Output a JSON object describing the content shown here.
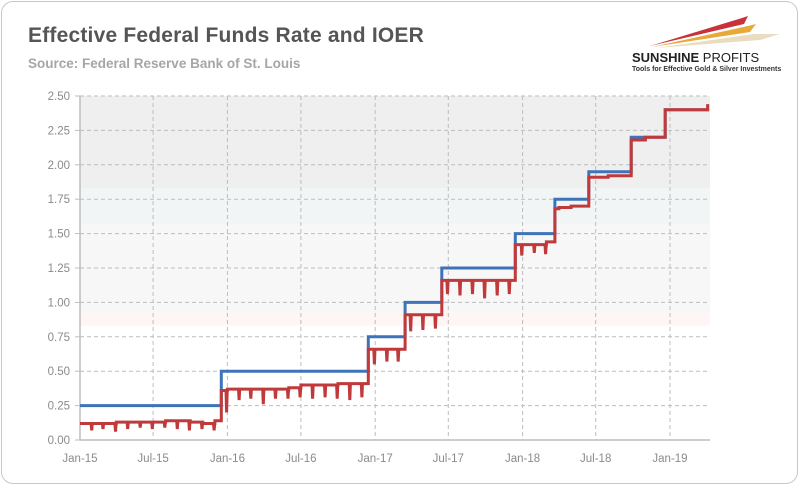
{
  "chart_data": {
    "type": "line",
    "title": "Effective Federal Funds Rate and IOER",
    "subtitle": "Source: Federal Reserve Bank of St. Louis",
    "xlabel": "",
    "ylabel": "",
    "ylim": [
      0,
      2.5
    ],
    "xlim": [
      "2015-01-01",
      "2019-04-08"
    ],
    "grid": true,
    "legend": "none",
    "y_ticks": [
      "0.00",
      "0.25",
      "0.50",
      "0.75",
      "1.00",
      "1.25",
      "1.50",
      "1.75",
      "2.00",
      "2.25",
      "2.50"
    ],
    "x_ticks": [
      {
        "label": "Jan-15",
        "date": "2015-01-01"
      },
      {
        "label": "Jul-15",
        "date": "2015-07-01"
      },
      {
        "label": "Jan-16",
        "date": "2016-01-01"
      },
      {
        "label": "Jul-16",
        "date": "2016-07-01"
      },
      {
        "label": "Jan-17",
        "date": "2017-01-01"
      },
      {
        "label": "Jul-17",
        "date": "2017-07-01"
      },
      {
        "label": "Jan-18",
        "date": "2018-01-01"
      },
      {
        "label": "Jul-18",
        "date": "2018-07-01"
      },
      {
        "label": "Jan-19",
        "date": "2019-01-01"
      }
    ],
    "background_bands": [
      {
        "from": 1.83,
        "to": 2.5,
        "color": "#efefef"
      },
      {
        "from": 1.57,
        "to": 1.83,
        "color": "#f1f5f5"
      },
      {
        "from": 0.93,
        "to": 1.57,
        "color": "#f7f7f7"
      },
      {
        "from": 0.83,
        "to": 0.93,
        "color": "#fdf6f5"
      }
    ],
    "series": [
      {
        "key": "ioer",
        "color": "#3d73b9",
        "steps": [
          {
            "from": "2015-01-01",
            "value": 0.25
          },
          {
            "from": "2015-12-17",
            "value": 0.5
          },
          {
            "from": "2016-12-15",
            "value": 0.75
          },
          {
            "from": "2017-03-16",
            "value": 1.0
          },
          {
            "from": "2017-06-15",
            "value": 1.25
          },
          {
            "from": "2017-12-14",
            "value": 1.5
          },
          {
            "from": "2018-03-22",
            "value": 1.75
          },
          {
            "from": "2018-06-14",
            "value": 1.95
          },
          {
            "from": "2018-09-27",
            "value": 2.2
          },
          {
            "from": "2018-12-20",
            "value": 2.4
          }
        ],
        "end": "2019-04-08"
      },
      {
        "key": "effr",
        "color": "#c0393b",
        "periods": [
          {
            "from": "2015-01-01",
            "level": 0.12,
            "month_end_low": 0.07
          },
          {
            "from": "2015-02-01",
            "level": 0.12,
            "month_end_low": 0.08
          },
          {
            "from": "2015-03-01",
            "level": 0.12,
            "month_end_low": 0.06
          },
          {
            "from": "2015-04-01",
            "level": 0.13,
            "month_end_low": 0.08
          },
          {
            "from": "2015-05-01",
            "level": 0.13,
            "month_end_low": 0.09
          },
          {
            "from": "2015-06-01",
            "level": 0.13,
            "month_end_low": 0.08
          },
          {
            "from": "2015-07-01",
            "level": 0.13,
            "month_end_low": 0.09
          },
          {
            "from": "2015-08-01",
            "level": 0.14,
            "month_end_low": 0.08
          },
          {
            "from": "2015-09-01",
            "level": 0.14,
            "month_end_low": 0.07
          },
          {
            "from": "2015-10-01",
            "level": 0.13,
            "month_end_low": 0.08
          },
          {
            "from": "2015-11-01",
            "level": 0.12,
            "month_end_low": 0.07
          },
          {
            "from": "2015-12-01",
            "level": 0.14,
            "month_end_low": null
          },
          {
            "from": "2015-12-17",
            "level": 0.36,
            "month_end_low": 0.2
          },
          {
            "from": "2016-01-01",
            "level": 0.37,
            "month_end_low": 0.29
          },
          {
            "from": "2016-02-01",
            "level": 0.37,
            "month_end_low": 0.3
          },
          {
            "from": "2016-03-01",
            "level": 0.37,
            "month_end_low": 0.26
          },
          {
            "from": "2016-04-01",
            "level": 0.37,
            "month_end_low": 0.3
          },
          {
            "from": "2016-05-01",
            "level": 0.37,
            "month_end_low": 0.3
          },
          {
            "from": "2016-06-01",
            "level": 0.38,
            "month_end_low": 0.31
          },
          {
            "from": "2016-07-01",
            "level": 0.4,
            "month_end_low": 0.3
          },
          {
            "from": "2016-08-01",
            "level": 0.4,
            "month_end_low": 0.31
          },
          {
            "from": "2016-09-01",
            "level": 0.4,
            "month_end_low": 0.3
          },
          {
            "from": "2016-10-01",
            "level": 0.41,
            "month_end_low": 0.29
          },
          {
            "from": "2016-11-01",
            "level": 0.41,
            "month_end_low": 0.31
          },
          {
            "from": "2016-12-01",
            "level": 0.41,
            "month_end_low": null
          },
          {
            "from": "2016-12-15",
            "level": 0.66,
            "month_end_low": 0.55
          },
          {
            "from": "2017-01-01",
            "level": 0.66,
            "month_end_low": 0.57
          },
          {
            "from": "2017-02-01",
            "level": 0.66,
            "month_end_low": 0.57
          },
          {
            "from": "2017-03-01",
            "level": 0.66,
            "month_end_low": null
          },
          {
            "from": "2017-03-16",
            "level": 0.91,
            "month_end_low": 0.79
          },
          {
            "from": "2017-04-01",
            "level": 0.91,
            "month_end_low": 0.8
          },
          {
            "from": "2017-05-01",
            "level": 0.91,
            "month_end_low": 0.81
          },
          {
            "from": "2017-06-01",
            "level": 0.91,
            "month_end_low": null
          },
          {
            "from": "2017-06-15",
            "level": 1.16,
            "month_end_low": 1.06
          },
          {
            "from": "2017-07-01",
            "level": 1.16,
            "month_end_low": 1.05
          },
          {
            "from": "2017-08-01",
            "level": 1.16,
            "month_end_low": 1.06
          },
          {
            "from": "2017-09-01",
            "level": 1.16,
            "month_end_low": 1.03
          },
          {
            "from": "2017-10-01",
            "level": 1.16,
            "month_end_low": 1.05
          },
          {
            "from": "2017-11-01",
            "level": 1.16,
            "month_end_low": 1.06
          },
          {
            "from": "2017-12-01",
            "level": 1.16,
            "month_end_low": null
          },
          {
            "from": "2017-12-14",
            "level": 1.42,
            "month_end_low": 1.34
          },
          {
            "from": "2018-01-01",
            "level": 1.42,
            "month_end_low": 1.36
          },
          {
            "from": "2018-02-01",
            "level": 1.42,
            "month_end_low": 1.35
          },
          {
            "from": "2018-03-01",
            "level": 1.44,
            "month_end_low": null
          },
          {
            "from": "2018-03-22",
            "level": 1.68,
            "month_end_low": null
          },
          {
            "from": "2018-04-01",
            "level": 1.69,
            "month_end_low": null
          },
          {
            "from": "2018-05-01",
            "level": 1.7,
            "month_end_low": null
          },
          {
            "from": "2018-06-14",
            "level": 1.91,
            "month_end_low": null
          },
          {
            "from": "2018-08-01",
            "level": 1.92,
            "month_end_low": null
          },
          {
            "from": "2018-09-27",
            "level": 2.18,
            "month_end_low": null
          },
          {
            "from": "2018-11-01",
            "level": 2.2,
            "month_end_low": null
          },
          {
            "from": "2018-12-20",
            "level": 2.4,
            "month_end_low": null
          },
          {
            "from": "2019-04-04",
            "level": 2.43,
            "month_end_low": null
          }
        ],
        "end": "2019-04-08"
      }
    ]
  },
  "logo": {
    "name_bold": "SUNSHINE",
    "name_light": " PROFITS",
    "tagline": "Tools for Effective Gold & Silver Investments"
  }
}
